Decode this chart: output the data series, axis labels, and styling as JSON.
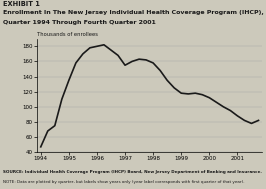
{
  "exhibit_label": "EXHIBIT 1",
  "title_line1": "Enrollment In The New Jersey Individual Health Coverage Program (IHCP), First",
  "title_line2": "Quarter 1994 Through Fourth Quarter 2001",
  "ylabel": "Thousands of enrollees",
  "background_color": "#ccc9bb",
  "plot_bg_color": "#ccc9bb",
  "line_color": "#1a1a1a",
  "line_width": 1.2,
  "ylim": [
    40,
    190
  ],
  "yticks": [
    40,
    60,
    80,
    100,
    120,
    140,
    160,
    180
  ],
  "xtick_labels": [
    "1994",
    "1995",
    "1996",
    "1997",
    "1998",
    "1999",
    "2000",
    "2001"
  ],
  "source_text": "SOURCE: Individual Health Coverage Program (IHCP) Board, New Jersey Department of Banking and Insurance.",
  "note_text": "NOTE: Data are plotted by quarter, but labels show years only (year label corresponds with first quarter of that year).",
  "quarters": [
    0,
    1,
    2,
    3,
    4,
    5,
    6,
    7,
    8,
    9,
    10,
    11,
    12,
    13,
    14,
    15,
    16,
    17,
    18,
    19,
    20,
    21,
    22,
    23,
    24,
    25,
    26,
    27,
    28,
    29,
    30,
    31
  ],
  "values": [
    47,
    68,
    75,
    110,
    135,
    158,
    170,
    178,
    180,
    182,
    175,
    168,
    155,
    160,
    163,
    162,
    158,
    148,
    135,
    125,
    118,
    117,
    118,
    116,
    112,
    106,
    100,
    95,
    88,
    82,
    78,
    82
  ]
}
